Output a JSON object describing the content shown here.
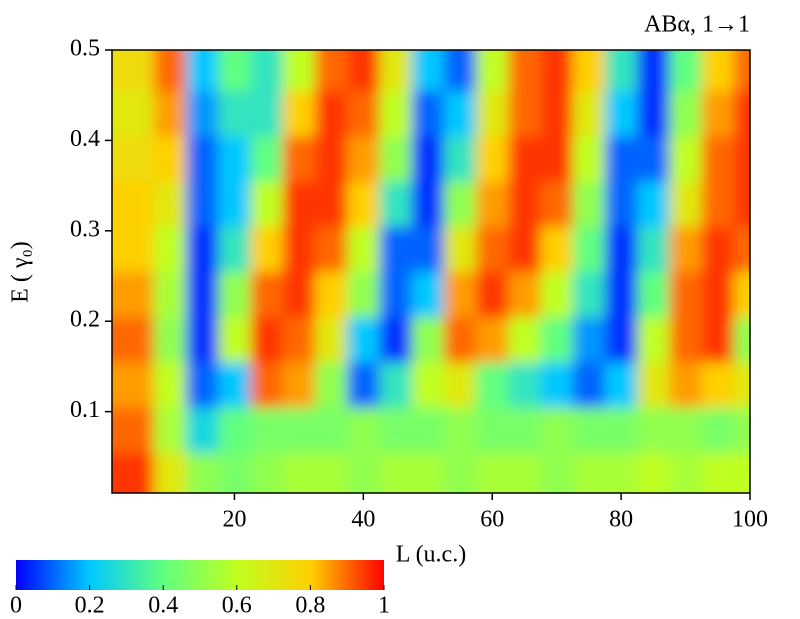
{
  "chart_data": {
    "type": "heatmap",
    "title": "ABα, 1→1",
    "xlabel": "L (u.c.)",
    "ylabel": "E ( γ₀)",
    "xlim": [
      1,
      100
    ],
    "xticks": [
      20,
      40,
      60,
      80,
      100
    ],
    "ylim": [
      0.01,
      0.5
    ],
    "yticks": [
      0.1,
      0.2,
      0.3,
      0.4,
      0.5
    ],
    "x": [
      5,
      10,
      15,
      20,
      25,
      30,
      35,
      40,
      45,
      50,
      55,
      60,
      65,
      70,
      75,
      80,
      85,
      90,
      95,
      100
    ],
    "y": [
      0.03,
      0.08,
      0.13,
      0.18,
      0.23,
      0.28,
      0.33,
      0.38,
      0.43,
      0.48
    ],
    "z": [
      [
        0.95,
        0.7,
        0.5,
        0.45,
        0.5,
        0.55,
        0.55,
        0.5,
        0.55,
        0.55,
        0.5,
        0.55,
        0.55,
        0.5,
        0.55,
        0.55,
        0.6,
        0.55,
        0.6,
        0.6
      ],
      [
        0.9,
        0.55,
        0.25,
        0.4,
        0.45,
        0.45,
        0.45,
        0.5,
        0.45,
        0.45,
        0.5,
        0.45,
        0.45,
        0.5,
        0.45,
        0.45,
        0.5,
        0.5,
        0.45,
        0.5
      ],
      [
        0.85,
        0.6,
        0.1,
        0.2,
        0.9,
        0.85,
        0.5,
        0.1,
        0.3,
        0.6,
        0.7,
        0.4,
        0.3,
        0.2,
        0.1,
        0.2,
        0.7,
        0.85,
        0.8,
        0.7
      ],
      [
        0.9,
        0.5,
        0.05,
        0.6,
        0.95,
        0.9,
        0.7,
        0.2,
        0.05,
        0.5,
        0.9,
        0.85,
        0.6,
        0.4,
        0.15,
        0.05,
        0.6,
        0.9,
        0.95,
        0.5
      ],
      [
        0.85,
        0.55,
        0.05,
        0.5,
        0.9,
        0.95,
        0.8,
        0.5,
        0.1,
        0.2,
        0.85,
        0.95,
        0.85,
        0.6,
        0.3,
        0.05,
        0.4,
        0.9,
        0.95,
        0.8
      ],
      [
        0.8,
        0.6,
        0.05,
        0.3,
        0.8,
        0.95,
        0.9,
        0.6,
        0.1,
        0.1,
        0.7,
        0.9,
        0.95,
        0.8,
        0.4,
        0.05,
        0.3,
        0.85,
        0.95,
        0.9
      ],
      [
        0.8,
        0.7,
        0.1,
        0.2,
        0.6,
        0.95,
        0.95,
        0.8,
        0.3,
        0.05,
        0.5,
        0.85,
        0.95,
        0.9,
        0.5,
        0.1,
        0.2,
        0.7,
        0.9,
        0.95
      ],
      [
        0.75,
        0.8,
        0.1,
        0.2,
        0.4,
        0.9,
        0.95,
        0.85,
        0.5,
        0.05,
        0.3,
        0.8,
        0.95,
        0.95,
        0.6,
        0.1,
        0.1,
        0.6,
        0.9,
        0.95
      ],
      [
        0.7,
        0.85,
        0.15,
        0.3,
        0.3,
        0.8,
        0.95,
        0.9,
        0.6,
        0.1,
        0.2,
        0.7,
        0.9,
        0.95,
        0.7,
        0.2,
        0.05,
        0.5,
        0.85,
        0.95
      ],
      [
        0.75,
        0.9,
        0.2,
        0.4,
        0.3,
        0.6,
        0.9,
        0.95,
        0.7,
        0.2,
        0.1,
        0.6,
        0.9,
        0.95,
        0.8,
        0.3,
        0.05,
        0.4,
        0.8,
        0.9
      ]
    ],
    "colors": [
      "#0000ff",
      "#00c8ff",
      "#60ff80",
      "#c0ff20",
      "#ffd000",
      "#ff0000"
    ],
    "zlim": [
      0,
      1
    ],
    "zticks": [
      0,
      0.2,
      0.4,
      0.6,
      0.8,
      1
    ]
  }
}
